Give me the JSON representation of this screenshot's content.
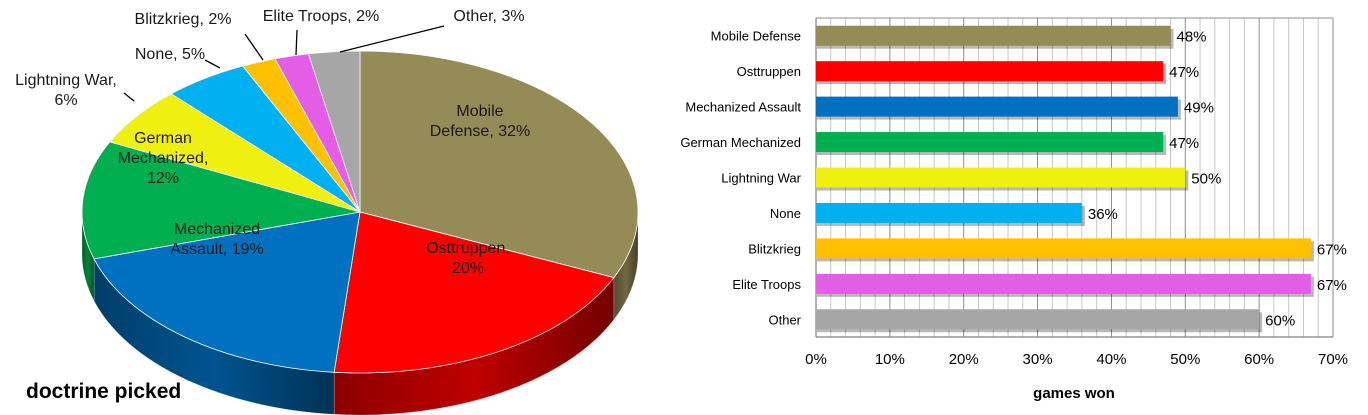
{
  "chart_data": [
    {
      "type": "pie",
      "title": "doctrine picked",
      "style": "3d-tilted",
      "slices": [
        {
          "name": "Mobile Defense",
          "value": 32,
          "label": "Mobile|Defense, 32%",
          "color": "#958b57"
        },
        {
          "name": "Osttruppen",
          "value": 20,
          "label": "Osttruppen,|20%",
          "color": "#ff0000"
        },
        {
          "name": "Mechanized Assault",
          "value": 19,
          "label": "Mechanized|Assault, 19%",
          "color": "#0070c0"
        },
        {
          "name": "German Mechanized",
          "value": 12,
          "label": "German|Mechanized,|12%",
          "color": "#00b050"
        },
        {
          "name": "Lightning War",
          "value": 6,
          "label": "Lightning War,|6%",
          "color": "#f0f010"
        },
        {
          "name": "None",
          "value": 5,
          "label": "None, 5%",
          "color": "#00b0f0"
        },
        {
          "name": "Blitzkrieg",
          "value": 2,
          "label": "Blitzkrieg, 2%",
          "color": "#ffc000"
        },
        {
          "name": "Elite Troops",
          "value": 2,
          "label": "Elite Troops, 2%",
          "color": "#e35de6"
        },
        {
          "name": "Other",
          "value": 3,
          "label": "Other, 3%",
          "color": "#a6a6a6"
        }
      ]
    },
    {
      "type": "bar",
      "orientation": "horizontal",
      "xlabel": "games won",
      "xlim": [
        0,
        70
      ],
      "xticks": [
        "0%",
        "10%",
        "20%",
        "30%",
        "40%",
        "50%",
        "60%",
        "70%"
      ],
      "grid": "vertical",
      "categories": [
        "Mobile Defense",
        "Osttruppen",
        "Mechanized Assault",
        "German Mechanized",
        "Lightning War",
        "None",
        "Blitzkrieg",
        "Elite Troops",
        "Other"
      ],
      "values": [
        48,
        47,
        49,
        47,
        50,
        36,
        67,
        67,
        60
      ],
      "value_labels": [
        "48%",
        "47%",
        "49%",
        "47%",
        "50%",
        "36%",
        "67%",
        "67%",
        "60%"
      ],
      "colors": [
        "#958b57",
        "#ff0000",
        "#0070c0",
        "#00b050",
        "#f0f010",
        "#00b0f0",
        "#ffc000",
        "#e35de6",
        "#a6a6a6"
      ]
    }
  ]
}
